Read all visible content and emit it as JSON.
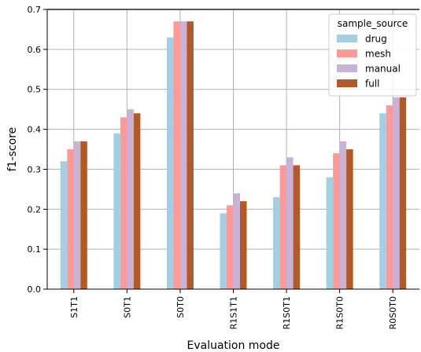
{
  "chart_data": {
    "type": "bar",
    "categories": [
      "S1T1",
      "S0T1",
      "S0T0",
      "R1S1T1",
      "R1S0T1",
      "R1S0T0",
      "R0S0T0"
    ],
    "series": [
      {
        "name": "drug",
        "color": "#a6cee3",
        "values": [
          0.32,
          0.39,
          0.63,
          0.19,
          0.23,
          0.28,
          0.44
        ]
      },
      {
        "name": "mesh",
        "color": "#fb9a99",
        "values": [
          0.35,
          0.43,
          0.67,
          0.21,
          0.31,
          0.34,
          0.46
        ]
      },
      {
        "name": "manual",
        "color": "#cab2d6",
        "values": [
          0.37,
          0.45,
          0.67,
          0.24,
          0.33,
          0.37,
          0.48
        ]
      },
      {
        "name": "full",
        "color": "#b15928",
        "values": [
          0.37,
          0.44,
          0.67,
          0.22,
          0.31,
          0.35,
          0.48
        ]
      }
    ],
    "xlabel": "Evaluation mode",
    "ylabel": "f1-score",
    "ylim": [
      0,
      0.7
    ],
    "yticks": [
      "0.0",
      "0.1",
      "0.2",
      "0.3",
      "0.4",
      "0.5",
      "0.6",
      "0.7"
    ],
    "ytick_values": [
      0,
      0.1,
      0.2,
      0.3,
      0.4,
      0.5,
      0.6,
      0.7
    ],
    "grid": true,
    "legend": {
      "title": "sample_source",
      "placement": "top-right"
    }
  }
}
